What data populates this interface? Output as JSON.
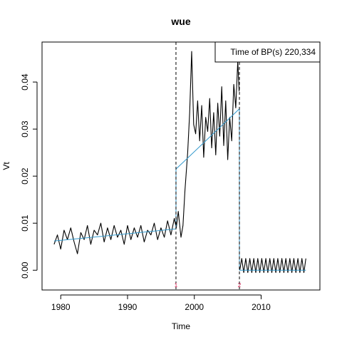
{
  "chart_data": {
    "type": "line",
    "title": "wue",
    "xlabel": "Time",
    "ylabel": "Vt",
    "xlim": [
      1977.2,
      2018.8
    ],
    "ylim": [
      -0.0042,
      0.0485
    ],
    "x_ticks": [
      1980,
      1990,
      2000,
      2010
    ],
    "x_tick_labels": [
      "1980",
      "1990",
      "2000",
      "2010"
    ],
    "y_ticks": [
      0.0,
      0.01,
      0.02,
      0.03,
      0.04
    ],
    "y_tick_labels": [
      "0.00",
      "0.01",
      "0.02",
      "0.03",
      "0.04"
    ],
    "grid": false,
    "legend": {
      "position": "top-right",
      "text": "Time of BP(s) 220,334"
    },
    "breakpoints": [
      {
        "x": 1997.25,
        "marker": "1"
      },
      {
        "x": 2006.75,
        "marker": "2"
      }
    ],
    "series": [
      {
        "role": "observed",
        "color": "#000000",
        "segments": [
          {
            "x": [
              1979.0,
              1979.5,
              1980.0,
              1980.5,
              1981.0,
              1981.5,
              1982.0,
              1982.5,
              1983.0,
              1983.5,
              1984.0,
              1984.5,
              1985.0,
              1985.5,
              1986.0,
              1986.5,
              1987.0,
              1987.5,
              1988.0,
              1988.5,
              1989.0,
              1989.5,
              1990.0,
              1990.5,
              1991.0,
              1991.5,
              1992.0,
              1992.5,
              1993.0,
              1993.5,
              1994.0,
              1994.5,
              1995.0,
              1995.5,
              1996.0,
              1996.5,
              1997.0,
              1997.3,
              1997.6,
              1998.0,
              1998.3,
              1998.6,
              1999.0,
              1999.3,
              1999.6,
              1999.9,
              2000.2,
              2000.5,
              2000.8,
              2001.1,
              2001.4,
              2001.7,
              2002.0,
              2002.3,
              2002.6,
              2002.9,
              2003.2,
              2003.5,
              2003.8,
              2004.1,
              2004.4,
              2004.7,
              2005.0,
              2005.3,
              2005.6,
              2005.9,
              2006.2,
              2006.5,
              2006.7
            ],
            "y": [
              0.0055,
              0.0075,
              0.0045,
              0.0085,
              0.0065,
              0.009,
              0.006,
              0.0035,
              0.008,
              0.0065,
              0.0095,
              0.0055,
              0.0085,
              0.0075,
              0.01,
              0.006,
              0.009,
              0.0065,
              0.0095,
              0.007,
              0.0085,
              0.0055,
              0.0095,
              0.0065,
              0.009,
              0.007,
              0.0095,
              0.006,
              0.0085,
              0.0075,
              0.01,
              0.0065,
              0.009,
              0.007,
              0.0105,
              0.0075,
              0.011,
              0.009,
              0.0125,
              0.007,
              0.0095,
              0.017,
              0.025,
              0.0335,
              0.0465,
              0.031,
              0.029,
              0.036,
              0.0275,
              0.035,
              0.024,
              0.0325,
              0.0295,
              0.0365,
              0.026,
              0.0335,
              0.0245,
              0.0355,
              0.0285,
              0.039,
              0.0265,
              0.036,
              0.0235,
              0.0325,
              0.0275,
              0.0395,
              0.0345,
              0.0445,
              0.038
            ]
          },
          {
            "x": [
              2006.8,
              2007.1,
              2007.4,
              2007.7,
              2008.0,
              2008.3,
              2008.6,
              2008.9,
              2009.2,
              2009.5,
              2009.8,
              2010.1,
              2010.4,
              2010.7,
              2011.0,
              2011.3,
              2011.6,
              2011.9,
              2012.2,
              2012.5,
              2012.8,
              2013.1,
              2013.4,
              2013.7,
              2014.0,
              2014.3,
              2014.6,
              2014.9,
              2015.2,
              2015.5,
              2015.8,
              2016.1,
              2016.4,
              2016.7
            ],
            "y": [
              0.0,
              0.0025,
              -0.0005,
              0.0025,
              -0.0005,
              0.0025,
              -0.0005,
              0.0025,
              -0.0005,
              0.0025,
              -0.0005,
              0.0025,
              -0.0005,
              0.0025,
              -0.0005,
              0.0025,
              -0.0005,
              0.0025,
              -0.0005,
              0.0025,
              -0.0005,
              0.0025,
              -0.0005,
              0.0025,
              -0.0005,
              0.0025,
              -0.0005,
              0.0025,
              -0.0005,
              0.0025,
              -0.0005,
              0.0025,
              -0.0005,
              0.0025
            ]
          }
        ]
      },
      {
        "role": "fitted-trend",
        "color": "#3399cc",
        "segments": [
          {
            "x": [
              1979.0,
              1997.25
            ],
            "y": [
              0.0062,
              0.0088
            ]
          },
          {
            "x": [
              1997.25,
              1997.25
            ],
            "y": [
              0.0088,
              0.0215
            ]
          },
          {
            "x": [
              1997.25,
              2006.75
            ],
            "y": [
              0.0215,
              0.0343
            ]
          },
          {
            "x": [
              2006.75,
              2006.75
            ],
            "y": [
              0.0343,
              0.0
            ]
          },
          {
            "x": [
              2006.75,
              2016.7
            ],
            "y": [
              0.0,
              0.0
            ]
          }
        ]
      }
    ]
  }
}
